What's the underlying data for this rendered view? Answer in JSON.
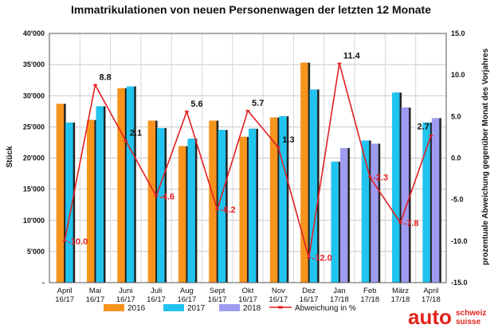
{
  "chart_data": {
    "type": "bar",
    "title": "Immatrikulationen von neuen Personenwagen der letzten 12 Monate",
    "ylabel": "Stück",
    "y2label": "prozentuale Abweichung gegenüber Monat des Vorjahres",
    "ylim": [
      0,
      40000
    ],
    "y2lim": [
      -15,
      15
    ],
    "yticks": [
      "-",
      "5'000",
      "10'000",
      "15'000",
      "20'000",
      "25'000",
      "30'000",
      "35'000",
      "40'000"
    ],
    "y2ticks": [
      "-15.0",
      "-10.0",
      "-5.0",
      "0.0",
      "5.0",
      "10.0",
      "15.0"
    ],
    "grid": true,
    "legend_position": "bottom",
    "categories": [
      [
        "April",
        "16/17"
      ],
      [
        "Mai",
        "16/17"
      ],
      [
        "Juni",
        "16/17"
      ],
      [
        "Juli",
        "16/17"
      ],
      [
        "Aug",
        "16/17"
      ],
      [
        "Sept",
        "16/17"
      ],
      [
        "Okt",
        "16/17"
      ],
      [
        "Nov",
        "16/17"
      ],
      [
        "Dez",
        "16/17"
      ],
      [
        "Jan",
        "17/18"
      ],
      [
        "Feb",
        "17/18"
      ],
      [
        "März",
        "17/18"
      ],
      [
        "April",
        "17/18"
      ]
    ],
    "series": [
      {
        "name": "2016",
        "color": "#f7941d",
        "values": [
          28700,
          26100,
          31200,
          26000,
          21900,
          26000,
          23400,
          26500,
          35300,
          null,
          null,
          null,
          null
        ]
      },
      {
        "name": "2017",
        "color": "#21c4ef",
        "values": [
          25700,
          28300,
          31500,
          24800,
          23100,
          24500,
          24700,
          26700,
          31000,
          19400,
          22800,
          30500,
          25700
        ]
      },
      {
        "name": "2018",
        "color": "#9e9cf0",
        "values": [
          null,
          null,
          null,
          null,
          null,
          null,
          null,
          null,
          null,
          21600,
          22300,
          28100,
          26400
        ]
      }
    ],
    "line": {
      "name": "Abweichung in %",
      "color": "#e31e24",
      "values": [
        -10.0,
        8.8,
        2.1,
        -4.6,
        5.6,
        -6.2,
        5.7,
        1.3,
        -12.0,
        11.4,
        -2.3,
        -7.8,
        2.7
      ],
      "labels": [
        "-10.0",
        "8.8",
        "2.1",
        "-4.6",
        "5.6",
        "-6.2",
        "5.7",
        "1.3",
        "-12.0",
        "11.4",
        "-2.3",
        "-7.8",
        "2.7"
      ]
    }
  },
  "logo": {
    "main": "auto",
    "line1": "schweiz",
    "line2": "suisse"
  }
}
